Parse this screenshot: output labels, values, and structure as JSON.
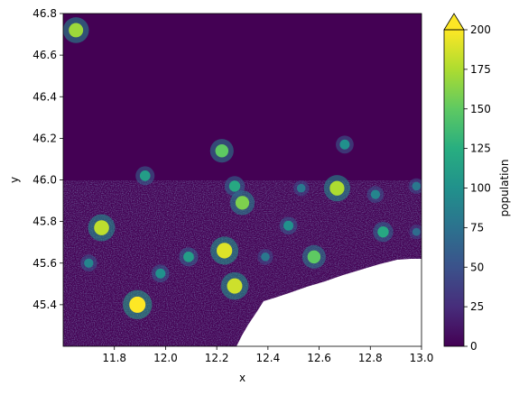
{
  "chart_data": {
    "type": "heatmap",
    "title": "",
    "xlabel": "x",
    "ylabel": "y",
    "xlim": [
      11.6,
      13.0
    ],
    "ylim": [
      45.2,
      46.8
    ],
    "xticks": [
      "11.8",
      "12.0",
      "12.2",
      "12.4",
      "12.6",
      "12.8",
      "13.0"
    ],
    "yticks": [
      "45.4",
      "45.6",
      "45.8",
      "46.0",
      "46.2",
      "46.4",
      "46.6",
      "46.8"
    ],
    "colorbar": {
      "label": "population",
      "colormap": "viridis",
      "range": [
        0,
        200
      ],
      "extend": "max",
      "ticks": [
        "0",
        "25",
        "50",
        "75",
        "100",
        "125",
        "150",
        "175",
        "200"
      ]
    },
    "colors": {
      "background": "#440154",
      "nodata": "#ffffff"
    },
    "hotspots": [
      {
        "x": 11.89,
        "y": 45.4,
        "value": 200
      },
      {
        "x": 12.23,
        "y": 45.66,
        "value": 190
      },
      {
        "x": 12.27,
        "y": 45.49,
        "value": 185
      },
      {
        "x": 11.75,
        "y": 45.77,
        "value": 180
      },
      {
        "x": 12.67,
        "y": 45.96,
        "value": 175
      },
      {
        "x": 12.3,
        "y": 45.89,
        "value": 160
      },
      {
        "x": 12.58,
        "y": 45.63,
        "value": 150
      },
      {
        "x": 12.22,
        "y": 46.14,
        "value": 150
      },
      {
        "x": 11.65,
        "y": 46.72,
        "value": 170
      },
      {
        "x": 12.27,
        "y": 45.97,
        "value": 120
      },
      {
        "x": 12.09,
        "y": 45.63,
        "value": 110
      },
      {
        "x": 11.92,
        "y": 46.02,
        "value": 110
      },
      {
        "x": 12.85,
        "y": 45.75,
        "value": 120
      },
      {
        "x": 12.7,
        "y": 46.17,
        "value": 100
      },
      {
        "x": 12.48,
        "y": 45.78,
        "value": 100
      },
      {
        "x": 12.82,
        "y": 45.93,
        "value": 90
      },
      {
        "x": 11.7,
        "y": 45.6,
        "value": 90
      },
      {
        "x": 11.98,
        "y": 45.55,
        "value": 100
      },
      {
        "x": 12.39,
        "y": 45.63,
        "value": 80
      },
      {
        "x": 12.53,
        "y": 45.96,
        "value": 80
      },
      {
        "x": 12.98,
        "y": 45.97,
        "value": 80
      },
      {
        "x": 12.98,
        "y": 45.75,
        "value": 70
      }
    ]
  }
}
